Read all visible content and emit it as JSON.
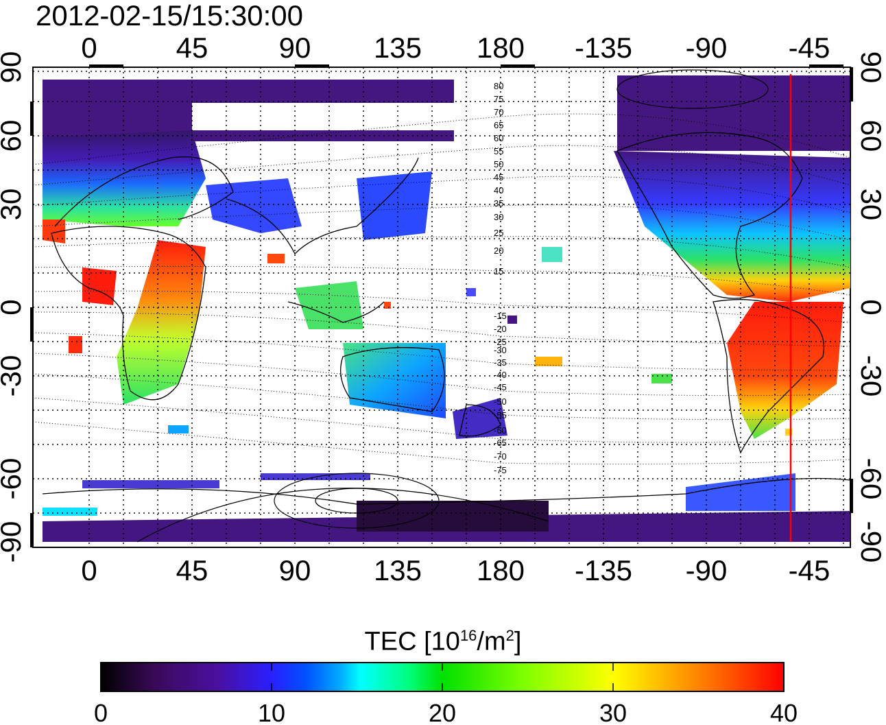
{
  "header": {
    "timestamp": "2012-02-15/15:30:00"
  },
  "map": {
    "top_axis_labels": [
      "0",
      "45",
      "90",
      "135",
      "180",
      "-135",
      "-90",
      "-45"
    ],
    "bottom_axis_labels": [
      "0",
      "45",
      "90",
      "135",
      "180",
      "-135",
      "-90",
      "-45"
    ],
    "left_axis_labels": [
      "90",
      "60",
      "30",
      "0",
      "-30",
      "-60",
      "-90"
    ],
    "right_axis_labels": [
      "90",
      "60",
      "30",
      "0",
      "-30",
      "-60",
      "-90"
    ],
    "contour_labels_north": [
      "80",
      "75",
      "70",
      "65",
      "60",
      "55",
      "50",
      "45",
      "40",
      "35",
      "30",
      "25",
      "20",
      "15"
    ],
    "contour_labels_south": [
      "-15",
      "-20",
      "-25",
      "-30",
      "-35",
      "-40",
      "-45",
      "-50",
      "-55",
      "-60",
      "-65",
      "-70",
      "-75"
    ],
    "terminator_longitude": -52,
    "terminator_color": "#ff0000"
  },
  "colorbar": {
    "title_prefix": "TEC  [10",
    "title_exp": "16",
    "title_mid": "/m",
    "title_exp2": "2",
    "title_suffix": "]",
    "range": [
      0,
      40
    ],
    "tick_labels": [
      "0",
      "10",
      "20",
      "30",
      "40"
    ],
    "colors": [
      "#000000",
      "#3a0a5a",
      "#4a0f9f",
      "#2a1fff",
      "#0050ff",
      "#00aaff",
      "#00ffff",
      "#00ff80",
      "#00e000",
      "#80ff00",
      "#ffff00",
      "#ffb000",
      "#ff6000",
      "#ff0000"
    ]
  }
}
